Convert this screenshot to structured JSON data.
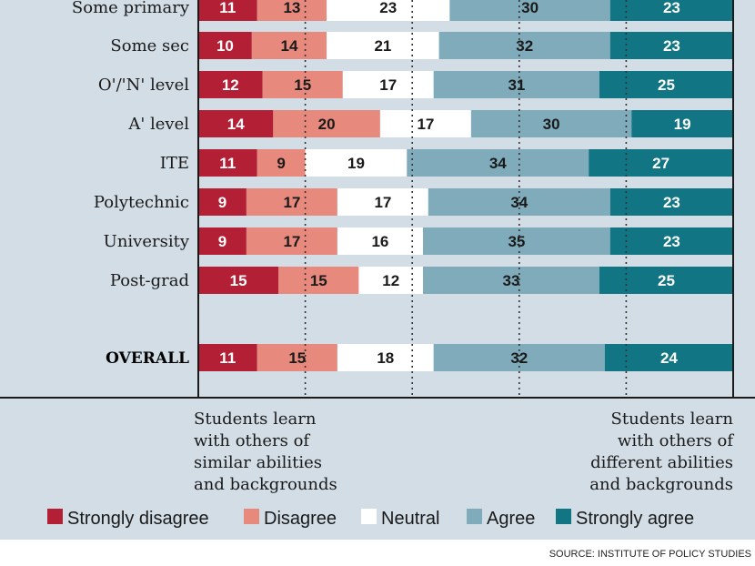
{
  "chart_data": {
    "type": "bar",
    "orientation": "horizontal",
    "stacked": true,
    "normalized_percent": true,
    "categories": [
      "Some primary",
      "Some sec",
      "O'/'N' level",
      "A' level",
      "ITE",
      "Polytechnic",
      "University",
      "Post-grad",
      "OVERALL"
    ],
    "series": [
      {
        "name": "Strongly disagree",
        "color": "#b31f34",
        "label_color": "#ffffff",
        "values": [
          11,
          10,
          12,
          14,
          11,
          9,
          9,
          15,
          11
        ]
      },
      {
        "name": "Disagree",
        "color": "#e7897c",
        "label_color": "#1a1a1a",
        "values": [
          13,
          14,
          15,
          20,
          9,
          17,
          17,
          15,
          15
        ]
      },
      {
        "name": "Neutral",
        "color": "#ffffff",
        "label_color": "#1a1a1a",
        "values": [
          23,
          21,
          17,
          17,
          19,
          17,
          16,
          12,
          18
        ]
      },
      {
        "name": "Agree",
        "color": "#7fabbb",
        "label_color": "#1a1a1a",
        "values": [
          30,
          32,
          31,
          30,
          34,
          34,
          35,
          33,
          32
        ]
      },
      {
        "name": "Strongly agree",
        "color": "#127584",
        "label_color": "#ffffff",
        "values": [
          23,
          23,
          25,
          19,
          27,
          23,
          23,
          25,
          24
        ]
      }
    ],
    "xlim": [
      0,
      100
    ],
    "gridlines": [
      20,
      40,
      60,
      80
    ],
    "left_note": [
      "Students learn",
      "with others of",
      "similar abilities",
      "and backgrounds"
    ],
    "right_note": [
      "Students learn",
      "with others of",
      "different abilities",
      "and backgrounds"
    ],
    "source": "SOURCE: INSTITUTE OF POLICY STUDIES",
    "legend": [
      "Strongly disagree",
      "Disagree",
      "Neutral",
      "Agree",
      "Strongly agree"
    ],
    "legend_position": "bottom"
  }
}
